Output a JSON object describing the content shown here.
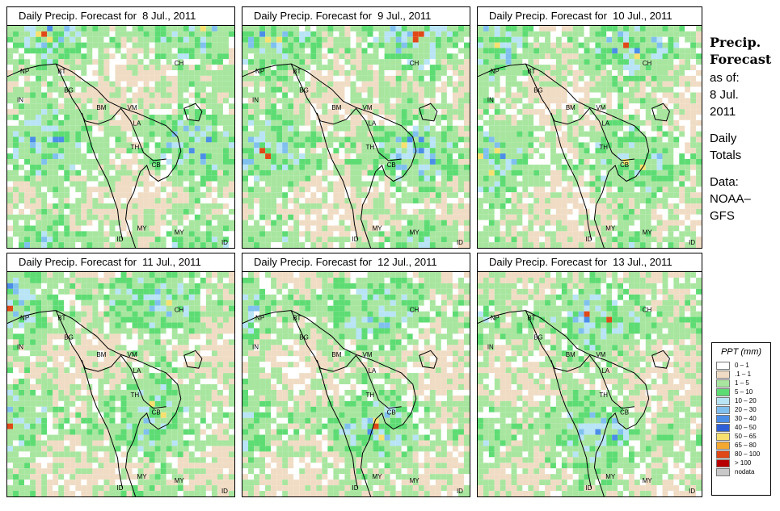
{
  "panels": [
    {
      "title": "Daily Precip. Forecast for  8 Jul., 2011",
      "seed": 11
    },
    {
      "title": "Daily Precip. Forecast for  9 Jul., 2011",
      "seed": 23
    },
    {
      "title": "Daily Precip. Forecast for  10 Jul., 2011",
      "seed": 37
    },
    {
      "title": "Daily Precip. Forecast for  11 Jul., 2011",
      "seed": 41
    },
    {
      "title": "Daily Precip. Forecast for  12 Jul., 2011",
      "seed": 53
    },
    {
      "title": "Daily Precip. Forecast for  13 Jul., 2011",
      "seed": 67
    }
  ],
  "country_labels": [
    "NP",
    "BT",
    "BG",
    "IN",
    "CH",
    "BM",
    "VM",
    "LA",
    "TH",
    "CB",
    "MY",
    "MY",
    "ID",
    "ID"
  ],
  "sidebar": {
    "title_line1": "Precip.",
    "title_line2": "Forecast",
    "asof_line1": "as of:",
    "asof_line2": "8 Jul.",
    "asof_line3": "2011",
    "totals_line1": "Daily",
    "totals_line2": "Totals",
    "data_line1": "Data:",
    "data_line2": "NOAA–",
    "data_line3": "GFS"
  },
  "legend": {
    "title": "PPT (mm)",
    "items": [
      {
        "label": "0 – 1",
        "color": "#ffffff"
      },
      {
        "label": ".1 – 1",
        "color": "#f0dcc4"
      },
      {
        "label": "1 – 5",
        "color": "#a8e6a0"
      },
      {
        "label": "5 – 10",
        "color": "#5edc74"
      },
      {
        "label": "10 – 20",
        "color": "#b8e4f6"
      },
      {
        "label": "20 – 30",
        "color": "#80c0ee"
      },
      {
        "label": "30 – 40",
        "color": "#4b8ee8"
      },
      {
        "label": "40 – 50",
        "color": "#2f5fd6"
      },
      {
        "label": "50 – 65",
        "color": "#f8e070"
      },
      {
        "label": "65 – 80",
        "color": "#f4a830"
      },
      {
        "label": "80 – 100",
        "color": "#e04818"
      },
      {
        "label": "> 100",
        "color": "#b80000"
      },
      {
        "label": "nodata",
        "color": "#c8c8c8"
      }
    ]
  }
}
